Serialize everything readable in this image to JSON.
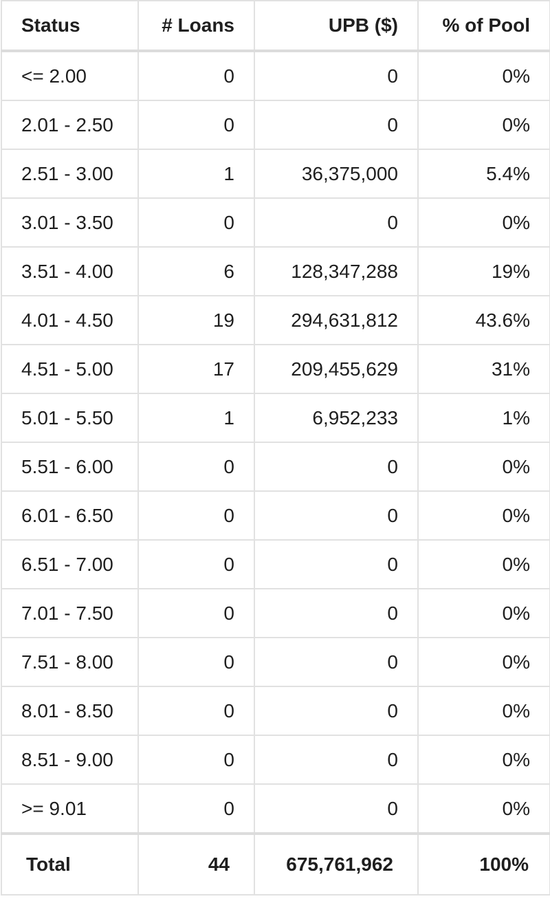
{
  "table": {
    "headers": {
      "status": "Status",
      "loans": "# Loans",
      "upb": "UPB ($)",
      "pct": "% of Pool"
    },
    "rows": [
      {
        "status": "<= 2.00",
        "loans": "0",
        "upb": "0",
        "pct": "0%"
      },
      {
        "status": "2.01 - 2.50",
        "loans": "0",
        "upb": "0",
        "pct": "0%"
      },
      {
        "status": "2.51 - 3.00",
        "loans": "1",
        "upb": "36,375,000",
        "pct": "5.4%"
      },
      {
        "status": "3.01 - 3.50",
        "loans": "0",
        "upb": "0",
        "pct": "0%"
      },
      {
        "status": "3.51 - 4.00",
        "loans": "6",
        "upb": "128,347,288",
        "pct": "19%"
      },
      {
        "status": "4.01 - 4.50",
        "loans": "19",
        "upb": "294,631,812",
        "pct": "43.6%"
      },
      {
        "status": "4.51 - 5.00",
        "loans": "17",
        "upb": "209,455,629",
        "pct": "31%"
      },
      {
        "status": "5.01 - 5.50",
        "loans": "1",
        "upb": "6,952,233",
        "pct": "1%"
      },
      {
        "status": "5.51 - 6.00",
        "loans": "0",
        "upb": "0",
        "pct": "0%"
      },
      {
        "status": "6.01 - 6.50",
        "loans": "0",
        "upb": "0",
        "pct": "0%"
      },
      {
        "status": "6.51 - 7.00",
        "loans": "0",
        "upb": "0",
        "pct": "0%"
      },
      {
        "status": "7.01 - 7.50",
        "loans": "0",
        "upb": "0",
        "pct": "0%"
      },
      {
        "status": "7.51 - 8.00",
        "loans": "0",
        "upb": "0",
        "pct": "0%"
      },
      {
        "status": "8.01 - 8.50",
        "loans": "0",
        "upb": "0",
        "pct": "0%"
      },
      {
        "status": "8.51 - 9.00",
        "loans": "0",
        "upb": "0",
        "pct": "0%"
      },
      {
        "status": ">= 9.01",
        "loans": "0",
        "upb": "0",
        "pct": "0%"
      }
    ],
    "total": {
      "status": "Total",
      "loans": "44",
      "upb": "675,761,962",
      "pct": "100%"
    }
  }
}
